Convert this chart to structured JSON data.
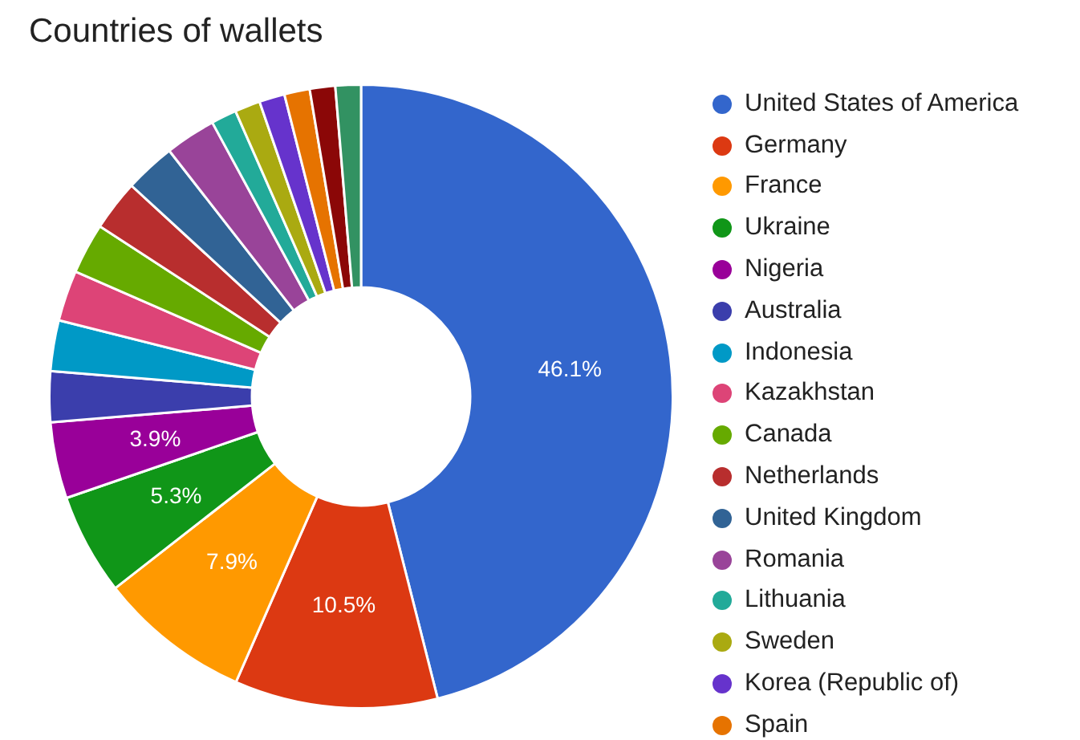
{
  "chart_data": {
    "type": "donut",
    "title": "Countries of wallets",
    "categories": [
      "United States of America",
      "Germany",
      "France",
      "Ukraine",
      "Nigeria",
      "Australia",
      "Indonesia",
      "Kazakhstan",
      "Canada",
      "Netherlands",
      "United Kingdom",
      "Romania",
      "Lithuania",
      "Sweden",
      "Korea (Republic of)",
      "Spain",
      null,
      null
    ],
    "values": [
      46.05,
      10.53,
      7.89,
      5.26,
      3.95,
      2.63,
      2.63,
      2.63,
      2.63,
      2.63,
      2.63,
      2.63,
      1.32,
      1.32,
      1.32,
      1.32,
      1.32,
      1.32
    ],
    "value_labels": [
      "46.1%",
      "10.5%",
      "7.9%",
      "5.3%",
      "3.9%",
      null,
      null,
      null,
      null,
      null,
      null,
      null,
      null,
      null,
      null,
      null,
      null,
      null
    ],
    "colors": [
      "#3366cc",
      "#dc3912",
      "#ff9900",
      "#109618",
      "#990099",
      "#3b3eac",
      "#0099c6",
      "#dd4477",
      "#66aa00",
      "#b82e2e",
      "#316395",
      "#994499",
      "#22aa99",
      "#aaaa11",
      "#6633cc",
      "#e67300",
      "#8b0707",
      "#329262"
    ],
    "legend": "right"
  }
}
